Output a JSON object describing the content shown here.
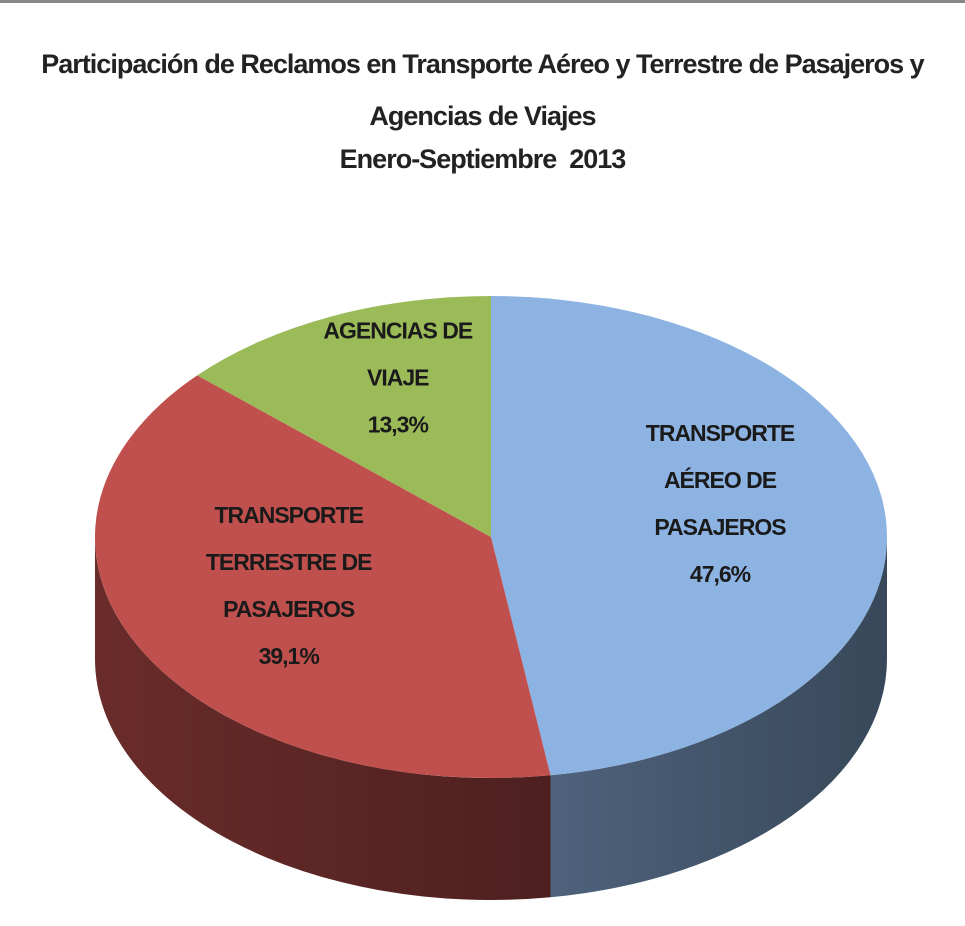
{
  "chart_data": {
    "type": "pie3d",
    "title": "Participación de Reclamos en Transporte Aéreo y Terrestre de Pasajeros y Agencias de Viajes",
    "subtitle": "Enero-Septiembre  2013",
    "categories": [
      "TRANSPORTE AÉREO DE PASAJEROS",
      "TRANSPORTE TERRESTRE DE PASAJEROS",
      "AGENCIAS DE VIAJE"
    ],
    "values": [
      47.6,
      39.1,
      13.3
    ],
    "value_labels": [
      "47,6%",
      "39,1%",
      "13,3%"
    ],
    "colors": [
      "#8db3e2",
      "#c0504d",
      "#9bbb59"
    ]
  }
}
